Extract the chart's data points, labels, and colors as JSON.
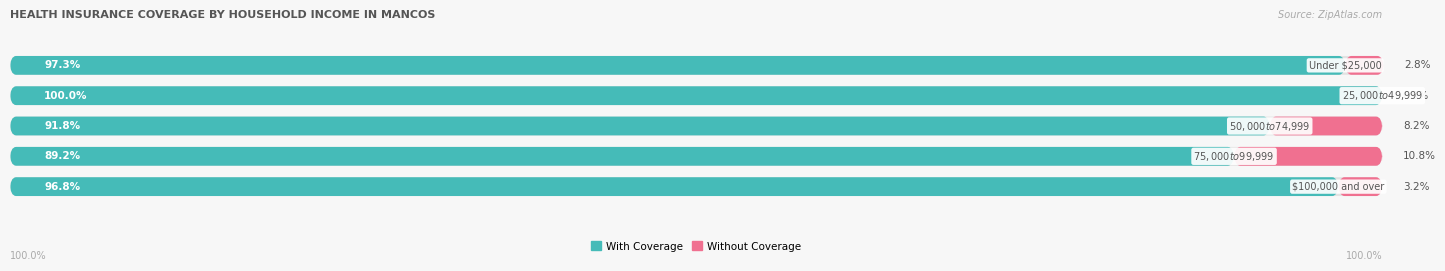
{
  "title": "HEALTH INSURANCE COVERAGE BY HOUSEHOLD INCOME IN MANCOS",
  "source": "Source: ZipAtlas.com",
  "categories": [
    "Under $25,000",
    "$25,000 to $49,999",
    "$50,000 to $74,999",
    "$75,000 to $99,999",
    "$100,000 and over"
  ],
  "with_coverage": [
    97.3,
    100.0,
    91.8,
    89.2,
    96.8
  ],
  "without_coverage": [
    2.8,
    0.0,
    8.2,
    10.8,
    3.2
  ],
  "color_with": "#45bbb8",
  "color_without": "#f07090",
  "bar_bg": "#e2e2e2",
  "background": "#f7f7f7",
  "label_with": "With Coverage",
  "label_without": "Without Coverage",
  "figsize": [
    14.06,
    2.7
  ],
  "dpi": 100
}
